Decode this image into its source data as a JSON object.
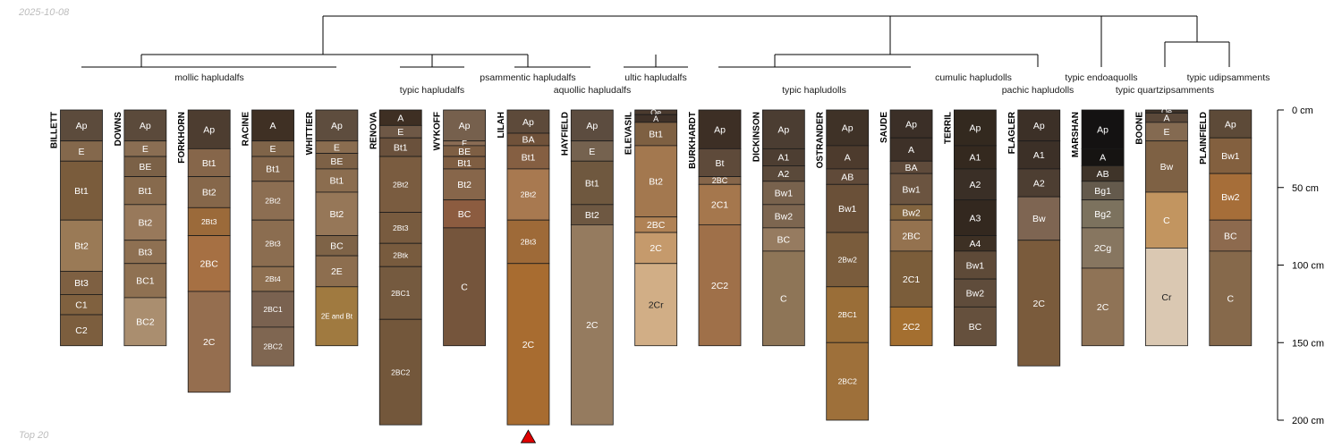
{
  "header": {
    "date": "2025-10-08"
  },
  "footer": {
    "caption": "Top 20"
  },
  "chart_data": {
    "type": "soil-profile-sketch",
    "title": "",
    "depth_axis": {
      "unit": "cm",
      "range": [
        0,
        200
      ],
      "ticks": [
        0,
        50,
        100,
        150,
        200
      ],
      "labels": [
        "0 cm",
        "50 cm",
        "100 cm",
        "150 cm",
        "200 cm"
      ]
    },
    "dendrogram_labels": [
      {
        "text": "mollic hapludalfs"
      },
      {
        "text": "typic hapludalfs"
      },
      {
        "text": "psammentic hapludalfs"
      },
      {
        "text": "aquollic hapludalfs"
      },
      {
        "text": "ultic hapludalfs"
      },
      {
        "text": "typic hapludolls"
      },
      {
        "text": "cumulic hapludolls"
      },
      {
        "text": "pachic hapludolls"
      },
      {
        "text": "typic endoaquolls"
      },
      {
        "text": "typic quartzipsamments"
      },
      {
        "text": "typic udipsamments"
      }
    ],
    "marker": {
      "profile": "LILAH",
      "symbol": "red-triangle"
    },
    "profiles": [
      {
        "name": "BILLETT",
        "horizons": [
          {
            "name": "Ap",
            "top": 0,
            "bottom": 20,
            "color": "#5C4B3C"
          },
          {
            "name": "E",
            "top": 20,
            "bottom": 33,
            "color": "#84684C"
          },
          {
            "name": "Bt1",
            "top": 33,
            "bottom": 71,
            "color": "#7A5C3C"
          },
          {
            "name": "Bt2",
            "top": 71,
            "bottom": 104,
            "color": "#9A7A56"
          },
          {
            "name": "Bt3",
            "top": 104,
            "bottom": 119,
            "color": "#7E6042"
          },
          {
            "name": "C1",
            "top": 119,
            "bottom": 132,
            "color": "#80613F"
          },
          {
            "name": "C2",
            "top": 132,
            "bottom": 152,
            "color": "#7C5E3E"
          }
        ]
      },
      {
        "name": "DOWNS",
        "horizons": [
          {
            "name": "Ap",
            "top": 0,
            "bottom": 20,
            "color": "#5B4A3B"
          },
          {
            "name": "E",
            "top": 20,
            "bottom": 30,
            "color": "#8A6E53"
          },
          {
            "name": "BE",
            "top": 30,
            "bottom": 43,
            "color": "#7B6147"
          },
          {
            "name": "Bt1",
            "top": 43,
            "bottom": 61,
            "color": "#876A4D"
          },
          {
            "name": "Bt2",
            "top": 61,
            "bottom": 84,
            "color": "#98795B"
          },
          {
            "name": "Bt3",
            "top": 84,
            "bottom": 99,
            "color": "#8E7052"
          },
          {
            "name": "BC1",
            "top": 99,
            "bottom": 121,
            "color": "#8F7152"
          },
          {
            "name": "BC2",
            "top": 121,
            "bottom": 152,
            "color": "#AA8E6F"
          }
        ]
      },
      {
        "name": "FORKHORN",
        "horizons": [
          {
            "name": "Ap",
            "top": 0,
            "bottom": 25,
            "color": "#4D3D30"
          },
          {
            "name": "Bt1",
            "top": 25,
            "bottom": 43,
            "color": "#86664A"
          },
          {
            "name": "Bt2",
            "top": 43,
            "bottom": 63,
            "color": "#86674A"
          },
          {
            "name": "2Bt3",
            "top": 63,
            "bottom": 81,
            "color": "#9B6A3A"
          },
          {
            "name": "2BC",
            "top": 81,
            "bottom": 117,
            "color": "#A67043"
          },
          {
            "name": "2C",
            "top": 117,
            "bottom": 182,
            "color": "#956E4F"
          }
        ]
      },
      {
        "name": "RACINE",
        "horizons": [
          {
            "name": "A",
            "top": 0,
            "bottom": 20,
            "color": "#3F3024"
          },
          {
            "name": "E",
            "top": 20,
            "bottom": 30,
            "color": "#7F6449"
          },
          {
            "name": "Bt1",
            "top": 30,
            "bottom": 46,
            "color": "#82654A"
          },
          {
            "name": "2Bt2",
            "top": 46,
            "bottom": 71,
            "color": "#8C6E52"
          },
          {
            "name": "2Bt3",
            "top": 71,
            "bottom": 101,
            "color": "#8B6D50"
          },
          {
            "name": "2Bt4",
            "top": 101,
            "bottom": 117,
            "color": "#8E6F50"
          },
          {
            "name": "2BC1",
            "top": 117,
            "bottom": 140,
            "color": "#7A6250"
          },
          {
            "name": "2BC2",
            "top": 140,
            "bottom": 165,
            "color": "#7F6651"
          }
        ]
      },
      {
        "name": "WHITTIER",
        "horizons": [
          {
            "name": "Ap",
            "top": 0,
            "bottom": 20,
            "color": "#5E4D3E"
          },
          {
            "name": "E",
            "top": 20,
            "bottom": 28,
            "color": "#8A6D50"
          },
          {
            "name": "BE",
            "top": 28,
            "bottom": 38,
            "color": "#7D6146"
          },
          {
            "name": "Bt1",
            "top": 38,
            "bottom": 53,
            "color": "#8B6D4F"
          },
          {
            "name": "Bt2",
            "top": 53,
            "bottom": 81,
            "color": "#967758"
          },
          {
            "name": "BC",
            "top": 81,
            "bottom": 94,
            "color": "#7E6347"
          },
          {
            "name": "2E",
            "top": 94,
            "bottom": 114,
            "color": "#8D6E4F"
          },
          {
            "name": "2E and Bt",
            "top": 114,
            "bottom": 152,
            "color": "#A07A40"
          }
        ]
      },
      {
        "name": "RENOVA",
        "horizons": [
          {
            "name": "A",
            "top": 0,
            "bottom": 10,
            "color": "#3E2F23"
          },
          {
            "name": "E",
            "top": 10,
            "bottom": 18,
            "color": "#6E5846"
          },
          {
            "name": "Bt1",
            "top": 18,
            "bottom": 30,
            "color": "#6A513C"
          },
          {
            "name": "2Bt2",
            "top": 30,
            "bottom": 66,
            "color": "#7A5C40"
          },
          {
            "name": "2Bt3",
            "top": 66,
            "bottom": 86,
            "color": "#785B3F"
          },
          {
            "name": "2Btk",
            "top": 86,
            "bottom": 101,
            "color": "#785B3E"
          },
          {
            "name": "2BC1",
            "top": 101,
            "bottom": 135,
            "color": "#755A3F"
          },
          {
            "name": "2BC2",
            "top": 135,
            "bottom": 203,
            "color": "#73573B"
          }
        ]
      },
      {
        "name": "WYKOFF",
        "horizons": [
          {
            "name": "Ap",
            "top": 0,
            "bottom": 20,
            "color": "#76604D"
          },
          {
            "name": "E",
            "top": 20,
            "bottom": 23,
            "color": "#8A6C54"
          },
          {
            "name": "BE",
            "top": 23,
            "bottom": 30,
            "color": "#7E5F44"
          },
          {
            "name": "Bt1",
            "top": 30,
            "bottom": 38,
            "color": "#7F5E42"
          },
          {
            "name": "Bt2",
            "top": 38,
            "bottom": 58,
            "color": "#87664A"
          },
          {
            "name": "BC",
            "top": 58,
            "bottom": 76,
            "color": "#8C5C40"
          },
          {
            "name": "C",
            "top": 76,
            "bottom": 152,
            "color": "#75553C"
          }
        ]
      },
      {
        "name": "LILAH",
        "horizons": [
          {
            "name": "Ap",
            "top": 0,
            "bottom": 15,
            "color": "#5D4A3A"
          },
          {
            "name": "BA",
            "top": 15,
            "bottom": 23,
            "color": "#70523A"
          },
          {
            "name": "Bt1",
            "top": 23,
            "bottom": 38,
            "color": "#855F42"
          },
          {
            "name": "2Bt2",
            "top": 38,
            "bottom": 71,
            "color": "#A87950"
          },
          {
            "name": "2Bt3",
            "top": 71,
            "bottom": 99,
            "color": "#9E6A38"
          },
          {
            "name": "2C",
            "top": 99,
            "bottom": 203,
            "color": "#A86C30"
          }
        ]
      },
      {
        "name": "HAYFIELD",
        "horizons": [
          {
            "name": "Ap",
            "top": 0,
            "bottom": 20,
            "color": "#5C4C3F"
          },
          {
            "name": "E",
            "top": 20,
            "bottom": 33,
            "color": "#75624F"
          },
          {
            "name": "Bt1",
            "top": 33,
            "bottom": 61,
            "color": "#6F583F"
          },
          {
            "name": "Bt2",
            "top": 61,
            "bottom": 74,
            "color": "#6E5842"
          },
          {
            "name": "2C",
            "top": 74,
            "bottom": 203,
            "color": "#957B5F"
          }
        ]
      },
      {
        "name": "ELEVASIL",
        "horizons": [
          {
            "name": "Oe",
            "top": 0,
            "bottom": 3,
            "color": "#4A3A2E"
          },
          {
            "name": "A",
            "top": 3,
            "bottom": 8,
            "color": "#3F3128"
          },
          {
            "name": "Bt1",
            "top": 8,
            "bottom": 23,
            "color": "#7E6042"
          },
          {
            "name": "Bt2",
            "top": 23,
            "bottom": 69,
            "color": "#A3784F"
          },
          {
            "name": "2BC",
            "top": 69,
            "bottom": 79,
            "color": "#B08255"
          },
          {
            "name": "2C",
            "top": 79,
            "bottom": 99,
            "color": "#C59A6C"
          },
          {
            "name": "2Cr",
            "top": 99,
            "bottom": 152,
            "color": "#D1AE86"
          }
        ]
      },
      {
        "name": "BURKHARDT",
        "horizons": [
          {
            "name": "Ap",
            "top": 0,
            "bottom": 25,
            "color": "#3D2F25"
          },
          {
            "name": "Bt",
            "top": 25,
            "bottom": 43,
            "color": "#5E4A3A"
          },
          {
            "name": "2BC",
            "top": 43,
            "bottom": 48,
            "color": "#86664A"
          },
          {
            "name": "2C1",
            "top": 48,
            "bottom": 74,
            "color": "#A5774D"
          },
          {
            "name": "2C2",
            "top": 74,
            "bottom": 152,
            "color": "#9F7049"
          }
        ]
      },
      {
        "name": "DICKINSON",
        "horizons": [
          {
            "name": "Ap",
            "top": 0,
            "bottom": 25,
            "color": "#4B3D32"
          },
          {
            "name": "A1",
            "top": 25,
            "bottom": 36,
            "color": "#4D3E32"
          },
          {
            "name": "A2",
            "top": 36,
            "bottom": 46,
            "color": "#5A493A"
          },
          {
            "name": "Bw1",
            "top": 46,
            "bottom": 61,
            "color": "#78624D"
          },
          {
            "name": "Bw2",
            "top": 61,
            "bottom": 76,
            "color": "#7D6650"
          },
          {
            "name": "BC",
            "top": 76,
            "bottom": 91,
            "color": "#967B60"
          },
          {
            "name": "C",
            "top": 91,
            "bottom": 152,
            "color": "#8E7557"
          }
        ]
      },
      {
        "name": "OSTRANDER",
        "horizons": [
          {
            "name": "Ap",
            "top": 0,
            "bottom": 23,
            "color": "#3F3227"
          },
          {
            "name": "A",
            "top": 23,
            "bottom": 38,
            "color": "#4D3B2D"
          },
          {
            "name": "AB",
            "top": 38,
            "bottom": 48,
            "color": "#604A39"
          },
          {
            "name": "Bw1",
            "top": 48,
            "bottom": 79,
            "color": "#6A5038"
          },
          {
            "name": "2Bw2",
            "top": 79,
            "bottom": 114,
            "color": "#7A5C3C"
          },
          {
            "name": "2BC1",
            "top": 114,
            "bottom": 150,
            "color": "#9A6E38"
          },
          {
            "name": "2BC2",
            "top": 150,
            "bottom": 200,
            "color": "#9E703A"
          }
        ]
      },
      {
        "name": "SAUDE",
        "horizons": [
          {
            "name": "Ap",
            "top": 0,
            "bottom": 18,
            "color": "#3B2F27"
          },
          {
            "name": "A",
            "top": 18,
            "bottom": 33,
            "color": "#3E3128"
          },
          {
            "name": "BA",
            "top": 33,
            "bottom": 41,
            "color": "#5F4B3B"
          },
          {
            "name": "Bw1",
            "top": 41,
            "bottom": 61,
            "color": "#6B5440"
          },
          {
            "name": "Bw2",
            "top": 61,
            "bottom": 71,
            "color": "#82643F"
          },
          {
            "name": "2BC",
            "top": 71,
            "bottom": 91,
            "color": "#94724F"
          },
          {
            "name": "2C1",
            "top": 91,
            "bottom": 127,
            "color": "#7B5D3A"
          },
          {
            "name": "2C2",
            "top": 127,
            "bottom": 152,
            "color": "#A46F30"
          }
        ]
      },
      {
        "name": "TERRIL",
        "horizons": [
          {
            "name": "Ap",
            "top": 0,
            "bottom": 23,
            "color": "#33291F"
          },
          {
            "name": "A1",
            "top": 23,
            "bottom": 38,
            "color": "#34291F"
          },
          {
            "name": "A2",
            "top": 38,
            "bottom": 58,
            "color": "#3A2F26"
          },
          {
            "name": "A3",
            "top": 58,
            "bottom": 81,
            "color": "#33281F"
          },
          {
            "name": "A4",
            "top": 81,
            "bottom": 91,
            "color": "#3D3024"
          },
          {
            "name": "Bw1",
            "top": 91,
            "bottom": 109,
            "color": "#5E4A38"
          },
          {
            "name": "Bw2",
            "top": 109,
            "bottom": 127,
            "color": "#5F4C3B"
          },
          {
            "name": "BC",
            "top": 127,
            "bottom": 152,
            "color": "#65503D"
          }
        ]
      },
      {
        "name": "FLAGLER",
        "horizons": [
          {
            "name": "Ap",
            "top": 0,
            "bottom": 20,
            "color": "#3C3027"
          },
          {
            "name": "A1",
            "top": 20,
            "bottom": 38,
            "color": "#3C3027"
          },
          {
            "name": "A2",
            "top": 38,
            "bottom": 56,
            "color": "#4D3E32"
          },
          {
            "name": "Bw",
            "top": 56,
            "bottom": 84,
            "color": "#7E6552"
          },
          {
            "name": "2C",
            "top": 84,
            "bottom": 165,
            "color": "#7A5B3C"
          }
        ]
      },
      {
        "name": "MARSHAN",
        "horizons": [
          {
            "name": "Ap",
            "top": 0,
            "bottom": 25,
            "color": "#141212"
          },
          {
            "name": "A",
            "top": 25,
            "bottom": 36,
            "color": "#161412"
          },
          {
            "name": "AB",
            "top": 36,
            "bottom": 46,
            "color": "#3F3429"
          },
          {
            "name": "Bg1",
            "top": 46,
            "bottom": 58,
            "color": "#645A4C"
          },
          {
            "name": "Bg2",
            "top": 58,
            "bottom": 76,
            "color": "#7C725E"
          },
          {
            "name": "2Cg",
            "top": 76,
            "bottom": 102,
            "color": "#877660"
          },
          {
            "name": "2C",
            "top": 102,
            "bottom": 152,
            "color": "#8F7356"
          }
        ]
      },
      {
        "name": "BOONE",
        "horizons": [
          {
            "name": "Oe",
            "top": 0,
            "bottom": 2,
            "color": "#3E3228"
          },
          {
            "name": "A",
            "top": 2,
            "bottom": 8,
            "color": "#5A4839"
          },
          {
            "name": "E",
            "top": 8,
            "bottom": 20,
            "color": "#846A51"
          },
          {
            "name": "Bw",
            "top": 20,
            "bottom": 53,
            "color": "#7E6144"
          },
          {
            "name": "C",
            "top": 53,
            "bottom": 89,
            "color": "#C29560"
          },
          {
            "name": "Cr",
            "top": 89,
            "bottom": 152,
            "color": "#DAC8B2"
          }
        ]
      },
      {
        "name": "PLAINFIELD",
        "horizons": [
          {
            "name": "Ap",
            "top": 0,
            "bottom": 18,
            "color": "#5D4A38"
          },
          {
            "name": "Bw1",
            "top": 18,
            "bottom": 41,
            "color": "#83603F"
          },
          {
            "name": "Bw2",
            "top": 41,
            "bottom": 71,
            "color": "#A66E39"
          },
          {
            "name": "BC",
            "top": 71,
            "bottom": 91,
            "color": "#8D6A4E"
          },
          {
            "name": "C",
            "top": 91,
            "bottom": 152,
            "color": "#86694B"
          }
        ]
      }
    ]
  }
}
